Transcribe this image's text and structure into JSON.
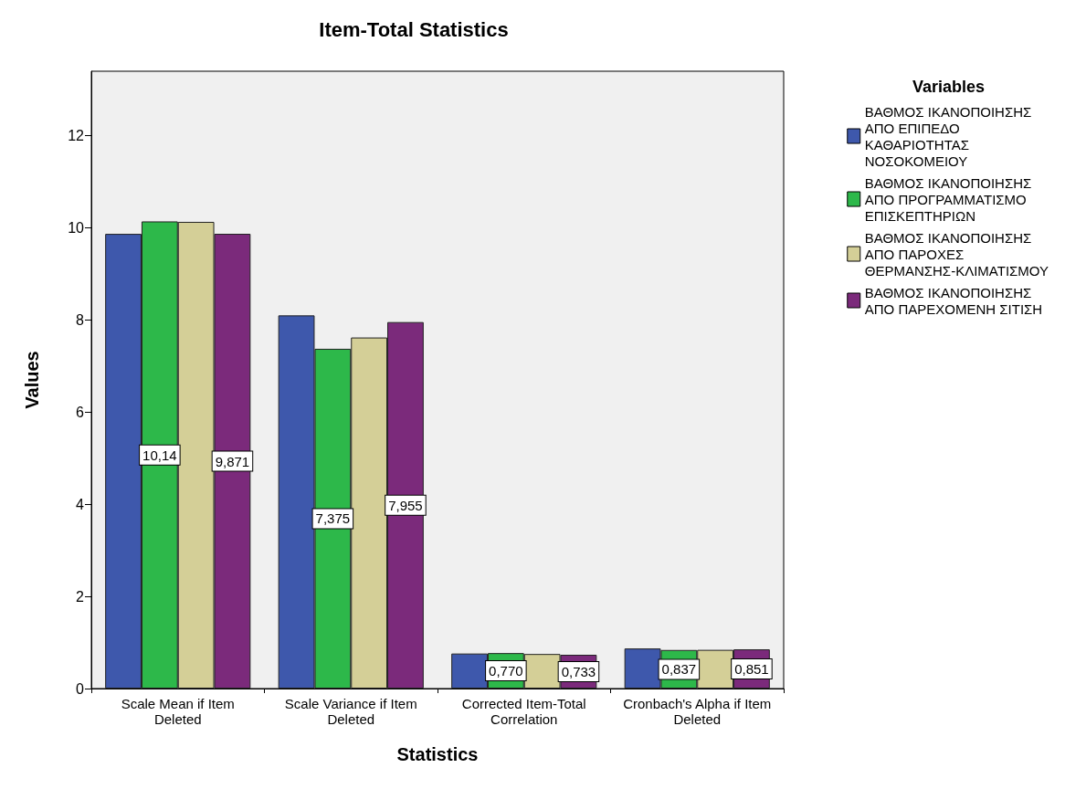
{
  "chart_data": {
    "type": "bar",
    "title": "Item-Total Statistics",
    "xlabel": "Statistics",
    "ylabel": "Values",
    "legend_title": "Variables",
    "categories": [
      "Scale Mean if Item Deleted",
      "Scale Variance if Item Deleted",
      "Corrected Item-Total Correlation",
      "Cronbach's Alpha if Item Deleted"
    ],
    "series": [
      {
        "name": "ΒΑΘΜΟΣ ΙΚΑΝΟΠΟΙΗΣΗΣ ΑΠΟ ΕΠΙΠΕΔΟ ΚΑΘΑΡΙΟΤΗΤΑΣ ΝΟΣΟΚΟΜΕΙΟΥ",
        "color": "#3e58ac",
        "values": [
          9.87,
          8.1,
          0.76,
          0.87
        ]
      },
      {
        "name": "ΒΑΘΜΟΣ ΙΚΑΝΟΠΟΙΗΣΗΣ ΑΠΟ ΠΡΟΓΡΑΜΜΑΤΙΣΜΟ ΕΠΙΣΚΕΠΤΗΡΙΩΝ",
        "color": "#2db84a",
        "values": [
          10.14,
          7.375,
          0.77,
          0.837
        ],
        "value_labels": [
          "10,14",
          "7,375",
          "0,770",
          "0,837"
        ]
      },
      {
        "name": "ΒΑΘΜΟΣ ΙΚΑΝΟΠΟΙΗΣΗΣ ΑΠΟ ΠΑΡΟΧΕΣ ΘΕΡΜΑΝΣΗΣ-ΚΛΙΜΑΤΙΣΜΟΥ",
        "color": "#d4cf97",
        "values": [
          10.13,
          7.62,
          0.75,
          0.84
        ]
      },
      {
        "name": "ΒΑΘΜΟΣ ΙΚΑΝΟΠΟΙΗΣΗΣ ΑΠΟ ΠΑΡΕΧΟΜΕΝΗ ΣΙΤΙΣΗ",
        "color": "#7b2a7b",
        "values": [
          9.871,
          7.955,
          0.733,
          0.851
        ],
        "value_labels": [
          "9,871",
          "7,955",
          "0,733",
          "0,851"
        ]
      }
    ],
    "ylim": [
      0,
      13.4
    ],
    "yticks": [
      0,
      2,
      4,
      6,
      8,
      10,
      12
    ],
    "grid": false,
    "legend": "right"
  }
}
